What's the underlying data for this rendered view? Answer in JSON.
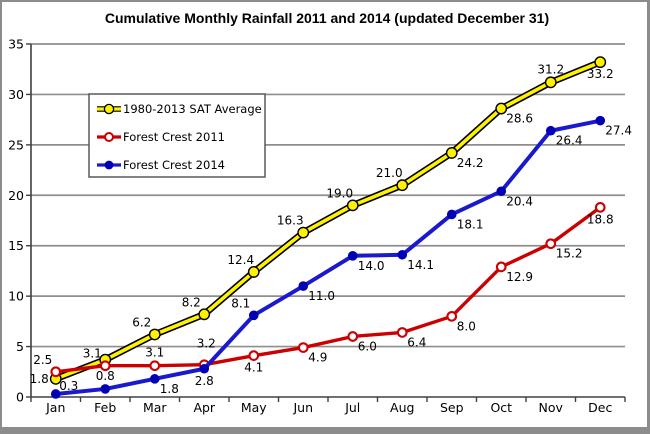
{
  "window": {
    "frame_color": "#8c8c8c",
    "background": "#ffffff"
  },
  "chart_data": {
    "type": "line",
    "title": "Cumulative Monthly Rainfall 2011 and 2014 (updated December 31)",
    "categories": [
      "Jan",
      "Feb",
      "Mar",
      "Apr",
      "May",
      "Jun",
      "Jul",
      "Aug",
      "Sep",
      "Oct",
      "Nov",
      "Dec"
    ],
    "y_axis": {
      "min": 0,
      "max": 35,
      "step": 5,
      "tick_labels": [
        "0",
        "5",
        "10",
        "15",
        "20",
        "25",
        "30",
        "35"
      ]
    },
    "grid": true,
    "gridline_color": "#8e8e8e",
    "axis_color": "#404040",
    "text_color": "#000000",
    "legend": {
      "position": "upper-left"
    },
    "series": [
      {
        "id": "sat-average",
        "name": "1980-2013 SAT Average",
        "line_color": "#fff200",
        "line_edge_color": "#000000",
        "line_width": 3.6,
        "marker_style": "filled-outlined",
        "marker_fill": "#fff200",
        "marker_stroke": "#000000",
        "values": [
          1.8,
          3.7,
          6.2,
          8.2,
          12.4,
          16.3,
          19.0,
          21.0,
          24.2,
          28.6,
          31.2,
          33.2
        ],
        "labels": [
          "1.8",
          "",
          "6.2",
          "8.2",
          "12.4",
          "16.3",
          "19.0",
          "21.0",
          "24.2",
          "28.6",
          "31.2",
          "33.2"
        ],
        "label_pos": [
          "left",
          "",
          "above-left",
          "above-left",
          "above-left",
          "above-left",
          "above-left",
          "above-left",
          "below-right",
          "below-right",
          "above",
          "below"
        ]
      },
      {
        "id": "forest-crest-2011",
        "name": "Forest Crest 2011",
        "line_color": "#cc0000",
        "line_width": 3.4,
        "marker_style": "open",
        "marker_fill": "#ffffff",
        "marker_stroke": "#cc0000",
        "values": [
          2.5,
          3.1,
          3.1,
          3.2,
          4.1,
          4.9,
          6.0,
          6.4,
          8.0,
          12.9,
          15.2,
          18.8
        ],
        "labels": [
          "2.5",
          "3.1",
          "3.1",
          "3.2",
          "4.1",
          "4.9",
          "6.0",
          "6.4",
          "8.0",
          "12.9",
          "15.2",
          "18.8"
        ],
        "label_pos": [
          "above-left",
          "above-left",
          "above",
          "above-far",
          "below",
          "below-right",
          "below-right",
          "below-right",
          "below-right",
          "below-right",
          "below-right",
          "below"
        ]
      },
      {
        "id": "forest-crest-2014",
        "name": "Forest Crest 2014",
        "line_color": "#1a1acc",
        "line_width": 4,
        "marker_style": "filled",
        "marker_fill": "#0000b4",
        "marker_stroke": "#0000b4",
        "values": [
          0.3,
          0.8,
          1.8,
          2.8,
          8.1,
          11.0,
          14.0,
          14.1,
          18.1,
          20.4,
          26.4,
          27.4
        ],
        "labels": [
          "0.3",
          "0.8",
          "1.8",
          "2.8",
          "8.1",
          "11.0",
          "14.0",
          "14.1",
          "18.1",
          "20.4",
          "26.4",
          "27.4"
        ],
        "label_pos": [
          "above-right",
          "above",
          "below-right",
          "below",
          "above-left",
          "below-right",
          "below-right",
          "below-right",
          "below-right",
          "below-right",
          "below-right",
          "below-right"
        ]
      }
    ]
  }
}
